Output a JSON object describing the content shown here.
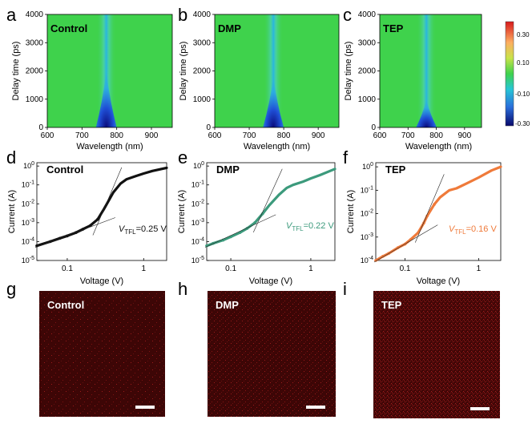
{
  "panels": {
    "a": {
      "letter": "a",
      "title": "Control"
    },
    "b": {
      "letter": "b",
      "title": "DMP"
    },
    "c": {
      "letter": "c",
      "title": "TEP"
    },
    "d": {
      "letter": "d",
      "title": "Control",
      "vtfl": "=0.25 V"
    },
    "e": {
      "letter": "e",
      "title": "DMP",
      "vtfl": "=0.22 V"
    },
    "f": {
      "letter": "f",
      "title": "TEP",
      "vtfl": "=0.16 V"
    },
    "g": {
      "letter": "g",
      "title": "Control"
    },
    "h": {
      "letter": "h",
      "title": "DMP"
    },
    "i": {
      "letter": "i",
      "title": "TEP"
    }
  },
  "vtfl_symbol": "V",
  "vtfl_subscript": "TFL",
  "colorbar": {
    "ticks": [
      "0.30",
      "0.10",
      "-0.10",
      "-0.30"
    ]
  },
  "chart_data": [
    {
      "type": "heatmap",
      "title": "Control",
      "xlabel": "Wavelength (nm)",
      "ylabel": "Delay time (ps)",
      "xlim": [
        600,
        960
      ],
      "ylim": [
        0,
        4000
      ],
      "xticks": [
        "600",
        "700",
        "800",
        "900"
      ],
      "yticks": [
        "0",
        "1000",
        "2000",
        "3000",
        "4000"
      ],
      "feature_center_nm": 770,
      "feature_max_delay_ps": 2000
    },
    {
      "type": "heatmap",
      "title": "DMP",
      "xlabel": "Wavelength (nm)",
      "ylabel": "Delay time (ps)",
      "xlim": [
        600,
        960
      ],
      "ylim": [
        0,
        4000
      ],
      "xticks": [
        "600",
        "700",
        "800",
        "900"
      ],
      "yticks": [
        "0",
        "1000",
        "2000",
        "3000",
        "4000"
      ],
      "feature_center_nm": 770,
      "feature_max_delay_ps": 1800
    },
    {
      "type": "heatmap",
      "title": "TEP",
      "xlabel": "Wavelength (nm)",
      "ylabel": "Delay time (ps)",
      "xlim": [
        600,
        960
      ],
      "ylim": [
        0,
        4000
      ],
      "xticks": [
        "600",
        "700",
        "800",
        "900"
      ],
      "yticks": [
        "0",
        "1000",
        "2000",
        "3000",
        "4000"
      ],
      "feature_center_nm": 765,
      "feature_max_delay_ps": 1000
    },
    {
      "type": "scatter",
      "title": "Control",
      "xlabel": "Voltage (V)",
      "ylabel": "Current (A)",
      "xscale": "log",
      "yscale": "log",
      "xlim": [
        0.04,
        2
      ],
      "ylim": [
        3e-06,
        1.5
      ],
      "xticks": [
        "0.1",
        "1"
      ],
      "yticks": [
        "10^0",
        "10^-1",
        "10^-2",
        "10^-3",
        "10^-4",
        "10^-5"
      ],
      "color": "#111111",
      "vtfl_V": 0.25,
      "series": [
        {
          "x": [
            0.04,
            0.06,
            0.08,
            0.1,
            0.13,
            0.16,
            0.2,
            0.25,
            0.3,
            0.35,
            0.4,
            0.5,
            0.6,
            0.8,
            1.0,
            1.3,
            2.0
          ],
          "y": [
            6e-05,
            0.0001,
            0.00015,
            0.0002,
            0.0003,
            0.00045,
            0.0007,
            0.0015,
            0.005,
            0.015,
            0.04,
            0.12,
            0.2,
            0.3,
            0.4,
            0.55,
            0.8
          ]
        }
      ]
    },
    {
      "type": "scatter",
      "title": "DMP",
      "xlabel": "Voltage (V)",
      "ylabel": "Current (A)",
      "xscale": "log",
      "yscale": "log",
      "xlim": [
        0.05,
        2
      ],
      "ylim": [
        5e-06,
        1.5
      ],
      "xticks": [
        "0.1",
        "1"
      ],
      "yticks": [
        "10^0",
        "10^-1",
        "10^-2",
        "10^-3",
        "10^-4",
        "10^-5"
      ],
      "color": "#3c9a7c",
      "vtfl_V": 0.22,
      "series": [
        {
          "x": [
            0.05,
            0.06,
            0.08,
            0.1,
            0.13,
            0.16,
            0.2,
            0.25,
            0.3,
            0.4,
            0.5,
            0.6,
            0.8,
            1.0,
            1.3,
            2.0
          ],
          "y": [
            6e-05,
            8e-05,
            0.00012,
            0.00018,
            0.0003,
            0.0005,
            0.001,
            0.003,
            0.008,
            0.03,
            0.07,
            0.1,
            0.15,
            0.22,
            0.33,
            0.7
          ]
        }
      ]
    },
    {
      "type": "scatter",
      "title": "TEP",
      "xlabel": "Voltage (V)",
      "ylabel": "Current (A)",
      "xscale": "log",
      "yscale": "log",
      "xlim": [
        0.04,
        2
      ],
      "ylim": [
        5e-05,
        1.5
      ],
      "xticks": [
        "0.1",
        "1"
      ],
      "yticks": [
        "10^0",
        "10^-1",
        "10^-2",
        "10^-3",
        "10^-4"
      ],
      "color": "#ef7a3a",
      "vtfl_V": 0.16,
      "series": [
        {
          "x": [
            0.04,
            0.05,
            0.06,
            0.08,
            0.1,
            0.12,
            0.15,
            0.18,
            0.2,
            0.25,
            0.3,
            0.4,
            0.5,
            0.7,
            1.0,
            1.5,
            2.0
          ],
          "y": [
            0.0001,
            0.00015,
            0.0002,
            0.00035,
            0.0005,
            0.0008,
            0.0015,
            0.004,
            0.008,
            0.025,
            0.05,
            0.1,
            0.12,
            0.2,
            0.35,
            0.7,
            1.0
          ]
        }
      ]
    }
  ]
}
